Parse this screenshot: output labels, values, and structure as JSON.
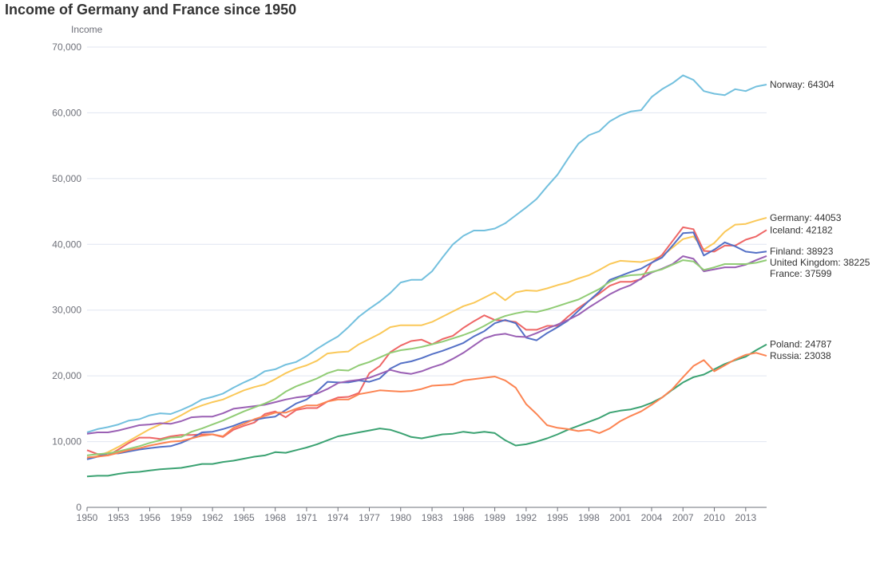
{
  "chart_data": {
    "type": "line",
    "title": "Income of Germany and France since 1950",
    "ylabel": "Income",
    "xlabel": "",
    "x": [
      1950,
      1951,
      1952,
      1953,
      1954,
      1955,
      1956,
      1957,
      1958,
      1959,
      1960,
      1961,
      1962,
      1963,
      1964,
      1965,
      1966,
      1967,
      1968,
      1969,
      1970,
      1971,
      1972,
      1973,
      1974,
      1975,
      1976,
      1977,
      1978,
      1979,
      1980,
      1981,
      1982,
      1983,
      1984,
      1985,
      1986,
      1987,
      1988,
      1989,
      1990,
      1991,
      1992,
      1993,
      1994,
      1995,
      1996,
      1997,
      1998,
      1999,
      2000,
      2001,
      2002,
      2003,
      2004,
      2005,
      2006,
      2007,
      2008,
      2009,
      2010,
      2011,
      2012,
      2013,
      2014,
      2015
    ],
    "xlim": [
      1950,
      2015
    ],
    "x_ticks": [
      "1950",
      "1953",
      "1956",
      "1959",
      "1962",
      "1965",
      "1968",
      "1971",
      "1974",
      "1977",
      "1980",
      "1983",
      "1986",
      "1989",
      "1992",
      "1995",
      "1998",
      "2001",
      "2004",
      "2007",
      "2010",
      "2013"
    ],
    "ylim": [
      0,
      70000
    ],
    "y_ticks": [
      "0",
      "10,000",
      "20,000",
      "30,000",
      "40,000",
      "50,000",
      "60,000",
      "70,000"
    ],
    "grid": true,
    "legend": "labels at line ends",
    "series": [
      {
        "name": "Norway",
        "end_label": "Norway: 64304",
        "color": "#73c0de",
        "values": [
          11400,
          11900,
          12200,
          12600,
          13200,
          13400,
          14000,
          14300,
          14200,
          14800,
          15500,
          16400,
          16800,
          17300,
          18200,
          19000,
          19700,
          20700,
          21000,
          21700,
          22100,
          23000,
          24100,
          25100,
          26000,
          27400,
          29000,
          30200,
          31300,
          32600,
          34200,
          34600,
          34600,
          35900,
          38000,
          40000,
          41300,
          42100,
          42100,
          42400,
          43200,
          44400,
          45600,
          46900,
          48800,
          50600,
          53000,
          55300,
          56600,
          57200,
          58700,
          59600,
          60200,
          60400,
          62400,
          63600,
          64500,
          65700,
          65000,
          63300,
          62900,
          62700,
          63600,
          63300,
          64000,
          64304
        ]
      },
      {
        "name": "Germany",
        "end_label": "Germany: 44053",
        "color": "#fac858",
        "values": [
          7400,
          7800,
          8400,
          9200,
          10100,
          11000,
          11900,
          12600,
          13200,
          14000,
          14900,
          15500,
          16000,
          16400,
          17100,
          17800,
          18300,
          18700,
          19500,
          20400,
          21100,
          21600,
          22300,
          23400,
          23600,
          23700,
          24800,
          25600,
          26400,
          27400,
          27700,
          27700,
          27700,
          28200,
          29000,
          29800,
          30600,
          31100,
          31900,
          32700,
          31500,
          32700,
          33000,
          32900,
          33300,
          33800,
          34200,
          34800,
          35300,
          36100,
          37000,
          37500,
          37400,
          37300,
          37700,
          38200,
          39500,
          40800,
          41200,
          39200,
          40200,
          41900,
          43000,
          43100,
          43600,
          44053
        ]
      },
      {
        "name": "Iceland",
        "end_label": "Iceland: 42182",
        "color": "#ee6666",
        "values": [
          8700,
          8100,
          7900,
          8800,
          9800,
          10600,
          10600,
          10400,
          10800,
          11000,
          11000,
          11100,
          11100,
          10700,
          11800,
          12400,
          12900,
          14200,
          14600,
          13700,
          14800,
          15100,
          15100,
          16100,
          16700,
          16800,
          17400,
          20400,
          21500,
          23600,
          24600,
          25300,
          25500,
          24800,
          25600,
          26100,
          27300,
          28300,
          29200,
          28500,
          28400,
          28200,
          27000,
          27000,
          27600,
          27600,
          29000,
          30300,
          31400,
          32500,
          33700,
          34300,
          34300,
          34700,
          37200,
          38400,
          40500,
          42600,
          42300,
          39000,
          38900,
          39800,
          39800,
          40700,
          41200,
          42182
        ]
      },
      {
        "name": "Finland",
        "end_label": "Finland: 38923",
        "color": "#5470c6",
        "values": [
          7300,
          7700,
          8200,
          8200,
          8500,
          8800,
          9000,
          9200,
          9300,
          9800,
          10500,
          11400,
          11500,
          11900,
          12400,
          13000,
          13300,
          13600,
          13800,
          14800,
          15800,
          16400,
          17600,
          19100,
          19000,
          19000,
          19300,
          19100,
          19600,
          21100,
          21900,
          22200,
          22700,
          23300,
          23800,
          24400,
          25000,
          26000,
          26800,
          28000,
          28500,
          28000,
          25800,
          25400,
          26500,
          27400,
          28400,
          29900,
          31400,
          32800,
          34600,
          35200,
          35800,
          36300,
          37200,
          38000,
          39800,
          41700,
          41800,
          38300,
          39200,
          40300,
          39700,
          38900,
          38700,
          38923
        ]
      },
      {
        "name": "United Kingdom",
        "end_label": "United Kingdom: 38225",
        "color": "#9a60b4",
        "values": [
          11200,
          11400,
          11400,
          11700,
          12100,
          12500,
          12600,
          12800,
          12700,
          13100,
          13700,
          13800,
          13800,
          14300,
          15000,
          15200,
          15400,
          15600,
          16000,
          16400,
          16700,
          16900,
          17300,
          18000,
          18900,
          19200,
          19400,
          19700,
          20300,
          20900,
          20500,
          20300,
          20700,
          21300,
          21800,
          22600,
          23500,
          24600,
          25700,
          26200,
          26400,
          26000,
          25900,
          26500,
          27200,
          27800,
          28500,
          29300,
          30400,
          31400,
          32400,
          33200,
          33800,
          34800,
          35700,
          36300,
          37000,
          38200,
          37800,
          35900,
          36200,
          36500,
          36500,
          36900,
          37600,
          38225
        ]
      },
      {
        "name": "France",
        "end_label": "France: 37599",
        "color": "#91cc75",
        "values": [
          7900,
          8100,
          8200,
          8500,
          8900,
          9300,
          9800,
          10200,
          10600,
          10700,
          11500,
          12000,
          12600,
          13200,
          13900,
          14600,
          15200,
          15800,
          16500,
          17600,
          18400,
          19000,
          19600,
          20400,
          20900,
          20800,
          21600,
          22100,
          22800,
          23500,
          23900,
          24100,
          24400,
          24800,
          25200,
          25700,
          26200,
          26800,
          27600,
          28500,
          29100,
          29500,
          29800,
          29700,
          30100,
          30600,
          31100,
          31600,
          32400,
          33200,
          34300,
          35000,
          35300,
          35400,
          35800,
          36200,
          36900,
          37600,
          37400,
          36100,
          36500,
          37000,
          37000,
          37000,
          37200,
          37599
        ]
      },
      {
        "name": "Poland",
        "end_label": "Poland: 24787",
        "color": "#3ba272",
        "values": [
          4700,
          4800,
          4800,
          5100,
          5300,
          5400,
          5600,
          5800,
          5900,
          6000,
          6300,
          6600,
          6600,
          6900,
          7100,
          7400,
          7700,
          7900,
          8400,
          8300,
          8700,
          9100,
          9600,
          10200,
          10800,
          11100,
          11400,
          11700,
          12000,
          11800,
          11300,
          10700,
          10500,
          10800,
          11100,
          11200,
          11500,
          11300,
          11500,
          11300,
          10200,
          9400,
          9600,
          10000,
          10500,
          11100,
          11800,
          12400,
          13000,
          13600,
          14400,
          14700,
          14900,
          15300,
          15900,
          16700,
          17900,
          19000,
          19800,
          20200,
          21000,
          21800,
          22400,
          22900,
          23900,
          24787
        ]
      },
      {
        "name": "Russia",
        "end_label": "Russia: 23038",
        "color": "#fc8452",
        "values": [
          7600,
          7700,
          7900,
          8300,
          8700,
          9000,
          9400,
          9700,
          10000,
          10100,
          10500,
          10900,
          11100,
          10800,
          12100,
          12700,
          13400,
          13900,
          14400,
          14400,
          15000,
          15500,
          15500,
          16100,
          16400,
          16400,
          17200,
          17500,
          17800,
          17700,
          17600,
          17700,
          18000,
          18500,
          18600,
          18700,
          19300,
          19500,
          19700,
          19900,
          19300,
          18200,
          15700,
          14200,
          12500,
          12100,
          11900,
          11600,
          11800,
          11300,
          12000,
          13100,
          13900,
          14600,
          15600,
          16700,
          18000,
          19800,
          21500,
          22400,
          20700,
          21600,
          22500,
          23200,
          23500,
          23038
        ]
      }
    ]
  }
}
